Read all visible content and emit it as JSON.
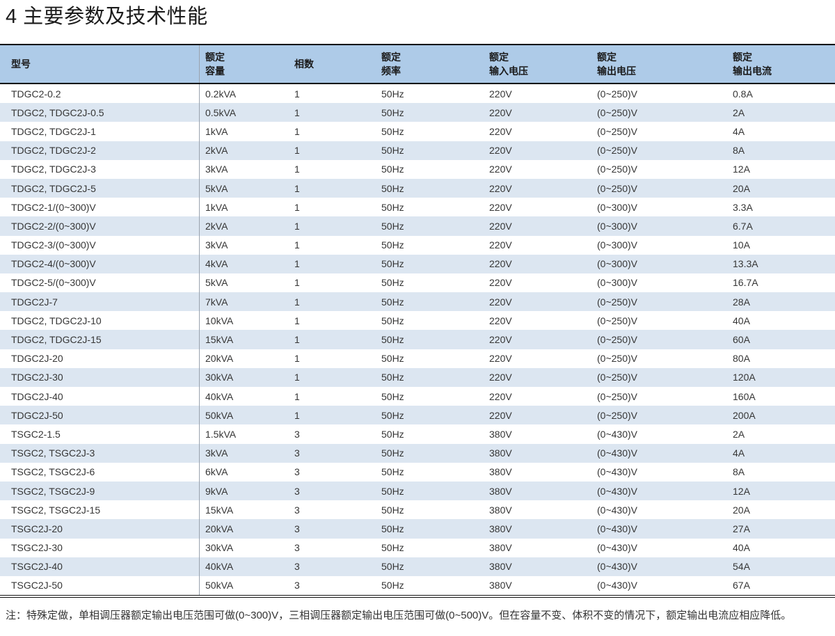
{
  "title": "4 主要参数及技术性能",
  "colors": {
    "header_bg": "#aecbe8",
    "stripe_bg": "#dce6f1",
    "border_black": "#000000",
    "text_dark": "#333333"
  },
  "table": {
    "columns": [
      {
        "id": "model",
        "label": "型号",
        "label_lines": [
          "型号"
        ]
      },
      {
        "id": "capacity",
        "label": "额定容量",
        "label_lines": [
          "额定",
          "容量"
        ]
      },
      {
        "id": "phases",
        "label": "相数",
        "label_lines": [
          "相数"
        ]
      },
      {
        "id": "frequency",
        "label": "额定频率",
        "label_lines": [
          "额定",
          "频率"
        ]
      },
      {
        "id": "input-voltage",
        "label": "额定输入电压",
        "label_lines": [
          "额定",
          "输入电压"
        ]
      },
      {
        "id": "output-voltage",
        "label": "额定输出电压",
        "label_lines": [
          "额定",
          "输出电压"
        ]
      },
      {
        "id": "output-current",
        "label": "额定输出电流",
        "label_lines": [
          "额定",
          "输出电流"
        ]
      }
    ],
    "rows": [
      [
        "TDGC2-0.2",
        "0.2kVA",
        "1",
        "50Hz",
        "220V",
        "(0~250)V",
        "0.8A"
      ],
      [
        "TDGC2, TDGC2J-0.5",
        "0.5kVA",
        "1",
        "50Hz",
        "220V",
        "(0~250)V",
        "2A"
      ],
      [
        "TDGC2, TDGC2J-1",
        "1kVA",
        "1",
        "50Hz",
        "220V",
        "(0~250)V",
        "4A"
      ],
      [
        "TDGC2, TDGC2J-2",
        "2kVA",
        "1",
        "50Hz",
        "220V",
        "(0~250)V",
        "8A"
      ],
      [
        "TDGC2, TDGC2J-3",
        "3kVA",
        "1",
        "50Hz",
        "220V",
        "(0~250)V",
        "12A"
      ],
      [
        "TDGC2, TDGC2J-5",
        "5kVA",
        "1",
        "50Hz",
        "220V",
        "(0~250)V",
        "20A"
      ],
      [
        "TDGC2-1/(0~300)V",
        "1kVA",
        "1",
        "50Hz",
        "220V",
        "(0~300)V",
        "3.3A"
      ],
      [
        "TDGC2-2/(0~300)V",
        "2kVA",
        "1",
        "50Hz",
        "220V",
        "(0~300)V",
        "6.7A"
      ],
      [
        "TDGC2-3/(0~300)V",
        "3kVA",
        "1",
        "50Hz",
        "220V",
        "(0~300)V",
        "10A"
      ],
      [
        "TDGC2-4/(0~300)V",
        "4kVA",
        "1",
        "50Hz",
        "220V",
        "(0~300)V",
        "13.3A"
      ],
      [
        "TDGC2-5/(0~300)V",
        "5kVA",
        "1",
        "50Hz",
        "220V",
        "(0~300)V",
        "16.7A"
      ],
      [
        "TDGC2J-7",
        "7kVA",
        "1",
        "50Hz",
        "220V",
        "(0~250)V",
        "28A"
      ],
      [
        "TDGC2, TDGC2J-10",
        "10kVA",
        "1",
        "50Hz",
        "220V",
        "(0~250)V",
        "40A"
      ],
      [
        "TDGC2, TDGC2J-15",
        "15kVA",
        "1",
        "50Hz",
        "220V",
        "(0~250)V",
        "60A"
      ],
      [
        "TDGC2J-20",
        "20kVA",
        "1",
        "50Hz",
        "220V",
        "(0~250)V",
        "80A"
      ],
      [
        "TDGC2J-30",
        "30kVA",
        "1",
        "50Hz",
        "220V",
        "(0~250)V",
        "120A"
      ],
      [
        "TDGC2J-40",
        "40kVA",
        "1",
        "50Hz",
        "220V",
        "(0~250)V",
        "160A"
      ],
      [
        "TDGC2J-50",
        "50kVA",
        "1",
        "50Hz",
        "220V",
        "(0~250)V",
        "200A"
      ],
      [
        "TSGC2-1.5",
        "1.5kVA",
        "3",
        "50Hz",
        "380V",
        "(0~430)V",
        "2A"
      ],
      [
        "TSGC2, TSGC2J-3",
        "3kVA",
        "3",
        "50Hz",
        "380V",
        "(0~430)V",
        "4A"
      ],
      [
        "TSGC2, TSGC2J-6",
        "6kVA",
        "3",
        "50Hz",
        "380V",
        "(0~430)V",
        "8A"
      ],
      [
        "TSGC2, TSGC2J-9",
        "9kVA",
        "3",
        "50Hz",
        "380V",
        "(0~430)V",
        "12A"
      ],
      [
        "TSGC2, TSGC2J-15",
        "15kVA",
        "3",
        "50Hz",
        "380V",
        "(0~430)V",
        "20A"
      ],
      [
        "TSGC2J-20",
        "20kVA",
        "3",
        "50Hz",
        "380V",
        "(0~430)V",
        "27A"
      ],
      [
        "TSGC2J-30",
        "30kVA",
        "3",
        "50Hz",
        "380V",
        "(0~430)V",
        "40A"
      ],
      [
        "TSGC2J-40",
        "40kVA",
        "3",
        "50Hz",
        "380V",
        "(0~430)V",
        "54A"
      ],
      [
        "TSGC2J-50",
        "50kVA",
        "3",
        "50Hz",
        "380V",
        "(0~430)V",
        "67A"
      ]
    ]
  },
  "note": "注：特殊定做，单相调压器额定输出电压范围可做(0~300)V，三相调压器额定输出电压范围可做(0~500)V。但在容量不变、体积不变的情况下，额定输出电流应相应降低。"
}
